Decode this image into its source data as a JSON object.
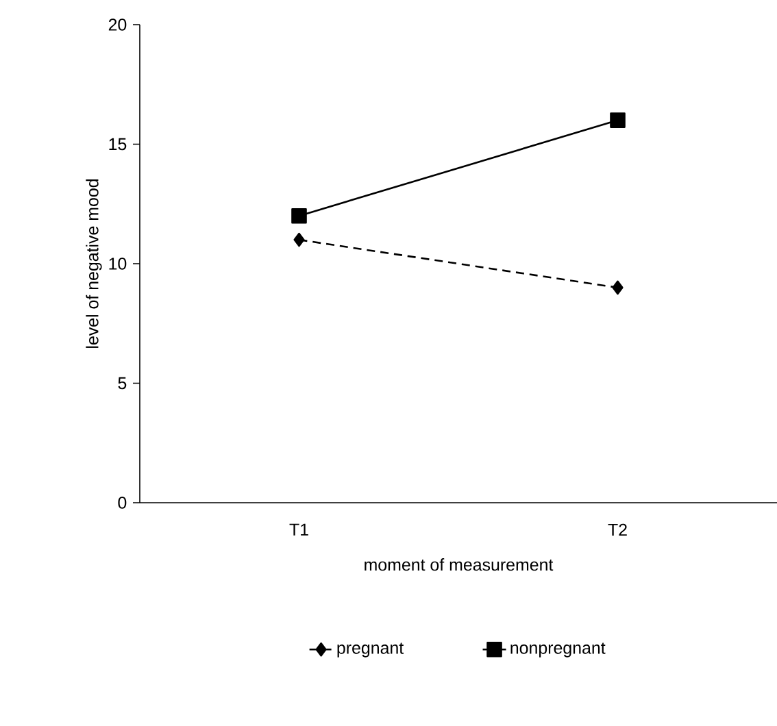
{
  "chart_data": {
    "type": "line",
    "xlabel": "moment of measurement",
    "ylabel": "level of negative mood",
    "categories": [
      "T1",
      "T2"
    ],
    "series": [
      {
        "name": "pregnant",
        "color": "#000000",
        "values": [
          11,
          9
        ],
        "marker": "diamond",
        "line_style": "dashed"
      },
      {
        "name": "nonpregnant",
        "color": "#000000",
        "values": [
          12,
          16
        ],
        "marker": "square",
        "line_style": "solid"
      }
    ],
    "ylim": [
      0,
      20
    ],
    "yticks": [
      0,
      5,
      10,
      15,
      20
    ],
    "legend": "bottom"
  }
}
